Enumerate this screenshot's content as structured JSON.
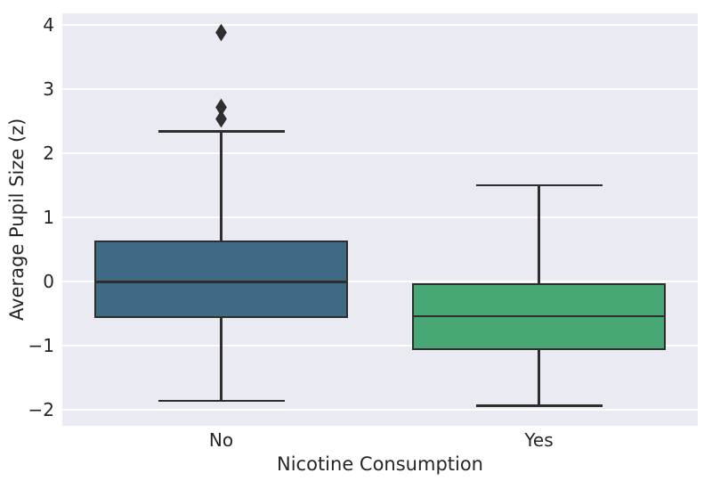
{
  "chart_data": {
    "type": "box",
    "title": "",
    "xlabel": "Nicotine Consumption",
    "ylabel": "Average Pupil Size (z)",
    "categories": [
      "No",
      "Yes"
    ],
    "yticks": [
      4,
      3,
      2,
      1,
      0,
      -1,
      -2
    ],
    "ytick_labels": [
      "4",
      "3",
      "2",
      "1",
      "0",
      "−1",
      "−2"
    ],
    "ylim": [
      -2.25,
      4.18
    ],
    "grid": "horizontal",
    "legend_position": "none",
    "plot_bg_color": "#eaeaf2",
    "grid_color": "#ffffff",
    "edge_color": "#2e2e2e",
    "text_color": "#262626",
    "series": [
      {
        "name": "No",
        "color": "#3f6a84",
        "whisker_low": -1.86,
        "q1": -0.57,
        "median": -0.01,
        "q3": 0.64,
        "whisker_high": 2.34,
        "outliers": [
          2.54,
          2.71,
          3.88
        ]
      },
      {
        "name": "Yes",
        "color": "#47a875",
        "whisker_low": -1.94,
        "q1": -1.07,
        "median": -0.54,
        "q3": -0.03,
        "whisker_high": 1.5,
        "outliers": []
      }
    ]
  }
}
